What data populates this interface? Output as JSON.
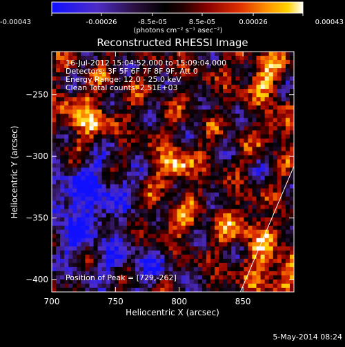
{
  "colorbar": {
    "ticks": [
      "-0.00043",
      "-0.00026",
      "-8.5e-05",
      "8.5e-05",
      "0.00026",
      "0.00043"
    ],
    "tick_values": [
      -0.00043,
      -0.00026,
      -8.5e-05,
      8.5e-05,
      0.00026,
      0.00043
    ],
    "range": [
      -0.00043,
      0.00043
    ],
    "unit_label": "(photons cm⁻² s⁻¹ asec⁻²)"
  },
  "title": "Reconstructed RHESSI Image",
  "annotations": {
    "line1": "16-Jul-2012 15:04:52.000 to 15:09:04.000",
    "line2": "Detectors: 3F 5F 6F 7F 8F 9F, Att 0",
    "line3": "Energy Range: 12.0 - 25.0 keV",
    "line4": "Clean    Total counts: 2.51E+03",
    "peak": "Position of Peak = [729,-262]"
  },
  "footer": {
    "timestamp": "5-May-2014 08:24"
  },
  "chart_data": {
    "type": "heatmap",
    "title": "Reconstructed RHESSI Image",
    "xlabel": "Heliocentric X (arcsec)",
    "ylabel": "Heliocentric Y (arcsec)",
    "xlim": [
      700,
      890
    ],
    "ylim": [
      -410,
      -215
    ],
    "x_ticks": [
      700,
      750,
      800,
      850
    ],
    "y_ticks": [
      -250,
      -300,
      -350,
      -400
    ],
    "x_tick_labels": [
      "700",
      "750",
      "800",
      "850"
    ],
    "y_tick_labels": [
      "−250",
      "−300",
      "−350",
      "−400"
    ],
    "colormap": "blue-purple-red-yellow-white",
    "peak": [
      729,
      -262
    ],
    "limb_line": [
      [
        848,
        -410
      ],
      [
        890,
        -308
      ]
    ],
    "colors": {
      "background": "#000000",
      "limb": "#ffffff"
    }
  }
}
